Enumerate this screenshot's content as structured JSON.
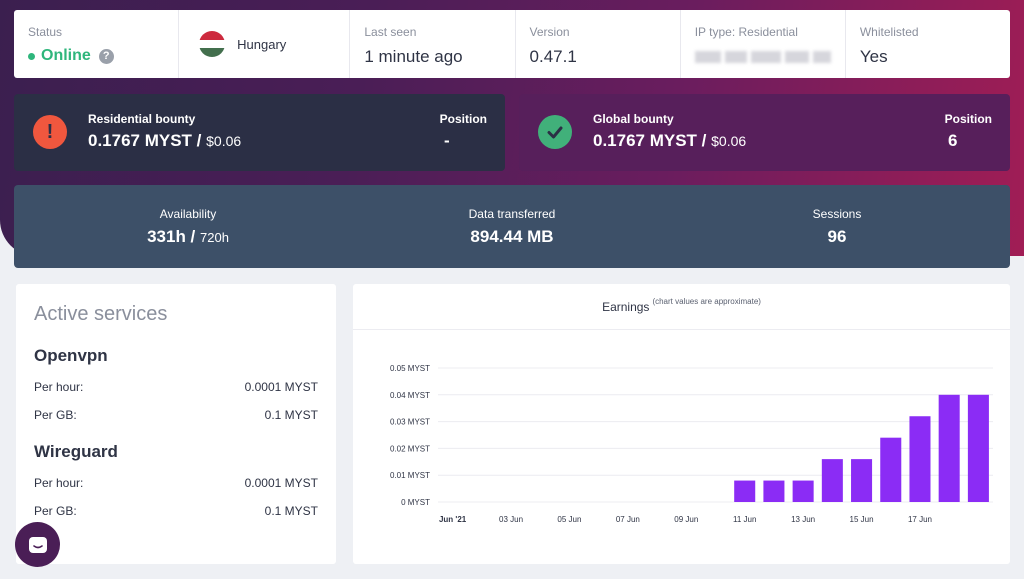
{
  "status": {
    "label": "Status",
    "value": "Online",
    "help": "?"
  },
  "country": {
    "name": "Hungary",
    "flag_colors": [
      "#cd2a3e",
      "#ffffff",
      "#436f4d"
    ]
  },
  "last_seen": {
    "label": "Last seen",
    "value": "1 minute ago"
  },
  "version": {
    "label": "Version",
    "value": "0.47.1"
  },
  "ip_type": {
    "label": "IP type: Residential"
  },
  "whitelisted": {
    "label": "Whitelisted",
    "value": "Yes"
  },
  "residential_bounty": {
    "title": "Residential bounty",
    "amount": "0.1767 MYST",
    "sep": " / ",
    "usd": "$0.06",
    "position_label": "Position",
    "position_value": "-",
    "icon": "!"
  },
  "global_bounty": {
    "title": "Global bounty",
    "amount": "0.1767 MYST",
    "sep": " / ",
    "usd": "$0.06",
    "position_label": "Position",
    "position_value": "6"
  },
  "stats": {
    "availability_label": "Availability",
    "availability_value": "331h",
    "availability_sep": " / ",
    "availability_total": "720h",
    "data_label": "Data transferred",
    "data_value": "894.44 MB",
    "sessions_label": "Sessions",
    "sessions_value": "96"
  },
  "services": {
    "title": "Active services",
    "items": [
      {
        "name": "Openvpn",
        "per_hour_label": "Per hour:",
        "per_hour": "0.0001 MYST",
        "per_gb_label": "Per GB:",
        "per_gb": "0.1 MYST"
      },
      {
        "name": "Wireguard",
        "per_hour_label": "Per hour:",
        "per_hour": "0.0001 MYST",
        "per_gb_label": "Per GB:",
        "per_gb": "0.1 MYST"
      }
    ]
  },
  "earnings": {
    "title": "Earnings",
    "note": "(chart values are approximate)"
  },
  "colors": {
    "accent_green": "#2fb67c",
    "bar_purple": "#8b2cf5"
  },
  "chart_data": {
    "type": "bar",
    "title": "Earnings",
    "subtitle": "(chart values are approximate)",
    "ylim": [
      0,
      0.05
    ],
    "yticks": [
      "0 MYST",
      "0.01 MYST",
      "0.02 MYST",
      "0.03 MYST",
      "0.04 MYST",
      "0.05 MYST"
    ],
    "xticks": [
      "Jun '21",
      "03 Jun",
      "05 Jun",
      "07 Jun",
      "09 Jun",
      "11 Jun",
      "13 Jun",
      "15 Jun",
      "17 Jun"
    ],
    "categories": [
      "01 Jun",
      "02 Jun",
      "03 Jun",
      "04 Jun",
      "05 Jun",
      "06 Jun",
      "07 Jun",
      "08 Jun",
      "09 Jun",
      "10 Jun",
      "11 Jun",
      "12 Jun",
      "13 Jun",
      "14 Jun",
      "15 Jun",
      "16 Jun",
      "17 Jun",
      "18 Jun",
      "19 Jun"
    ],
    "values": [
      0,
      0,
      0,
      0,
      0,
      0,
      0,
      0,
      0,
      0,
      0.008,
      0.008,
      0.008,
      0.016,
      0.016,
      0.024,
      0.032,
      0.04,
      0.04
    ],
    "grid": true
  }
}
